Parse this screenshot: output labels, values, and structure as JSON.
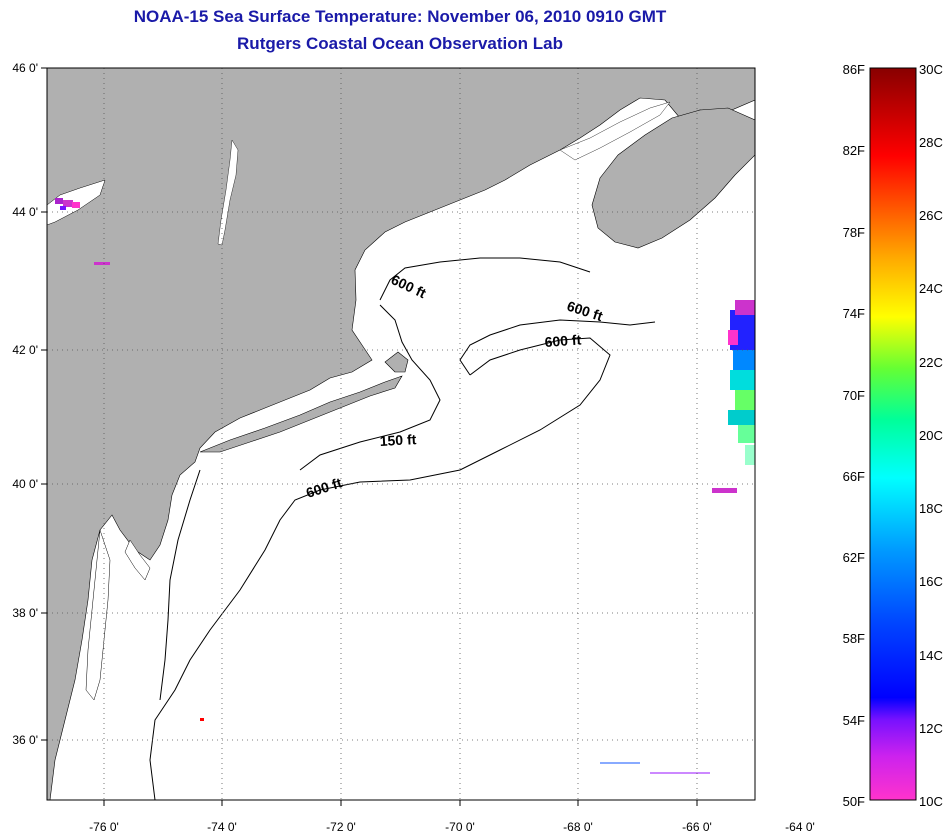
{
  "header": {
    "title": "NOAA-15 Sea Surface Temperature:  November 06, 2010 0910 GMT",
    "subtitle": "Rutgers Coastal Ocean Observation Lab"
  },
  "map": {
    "lat_labels": [
      "46 0'",
      "44 0'",
      "42 0'",
      "40 0'",
      "38 0'",
      "36 0'"
    ],
    "lon_labels": [
      "-76 0'",
      "-74 0'",
      "-72 0'",
      "-70 0'",
      "-68 0'",
      "-66 0'",
      "-64 0'"
    ],
    "contour_labels": [
      "600 ft",
      "600 ft",
      "600 ft",
      "150 ft",
      "600 ft"
    ],
    "colors": {
      "land": "#b0b0b0",
      "ocean": "#ffffff",
      "title": "#1a1aa8",
      "contour": "#000000"
    }
  },
  "colorbar": {
    "fahrenheit": [
      "86F",
      "82F",
      "78F",
      "74F",
      "70F",
      "66F",
      "62F",
      "58F",
      "54F",
      "50F"
    ],
    "celsius": [
      "30C",
      "28C",
      "26C",
      "24C",
      "22C",
      "20C",
      "18C",
      "16C",
      "14C",
      "12C",
      "10C"
    ],
    "gradient": [
      "#ff00cc",
      "#8800ff",
      "#0000ff",
      "#0088ff",
      "#00ffff",
      "#00ff88",
      "#88ff00",
      "#ffff00",
      "#ffaa00",
      "#ff5500",
      "#ff0000",
      "#cc0000",
      "#880000"
    ]
  }
}
